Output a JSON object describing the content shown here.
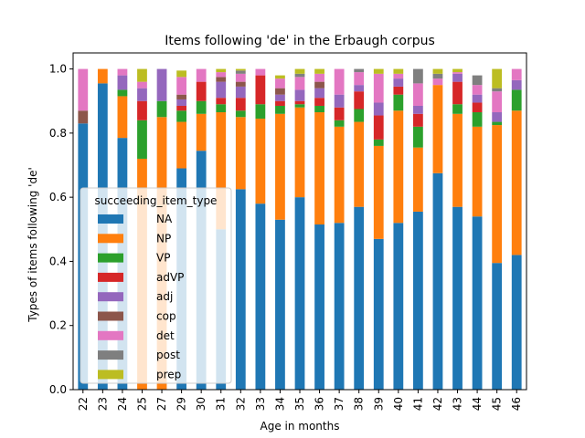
{
  "chart_data": {
    "type": "bar",
    "stacked": true,
    "title": "Items following 'de' in the Erbaugh corpus",
    "xlabel": "Age in months",
    "ylabel": "Types of items following 'de'",
    "ylim": [
      0,
      1.05
    ],
    "yticks": [
      "0.0",
      "0.2",
      "0.4",
      "0.6",
      "0.8",
      "1.0"
    ],
    "legend_title": "succeeding_item_type",
    "legend_placement": "center-left",
    "categories": [
      "22",
      "23",
      "24",
      "25",
      "27",
      "29",
      "30",
      "31",
      "32",
      "33",
      "34",
      "35",
      "36",
      "37",
      "38",
      "39",
      "40",
      "41",
      "42",
      "43",
      "44",
      "45",
      "46"
    ],
    "series": [
      {
        "name": "NA",
        "color": "#1f77b4",
        "values": [
          0.83,
          0.955,
          0.785,
          0.0,
          0.0,
          0.69,
          0.745,
          0.5,
          0.625,
          0.58,
          0.53,
          0.6,
          0.515,
          0.52,
          0.57,
          0.47,
          0.52,
          0.555,
          0.675,
          0.57,
          0.54,
          0.395,
          0.42
        ]
      },
      {
        "name": "NP",
        "color": "#ff7f0e",
        "values": [
          0.0,
          0.045,
          0.13,
          0.72,
          0.85,
          0.145,
          0.115,
          0.365,
          0.225,
          0.265,
          0.33,
          0.28,
          0.35,
          0.3,
          0.265,
          0.29,
          0.35,
          0.2,
          0.275,
          0.29,
          0.28,
          0.43,
          0.45
        ]
      },
      {
        "name": "VP",
        "color": "#2ca02c",
        "values": [
          0.0,
          0.0,
          0.02,
          0.12,
          0.05,
          0.035,
          0.04,
          0.025,
          0.02,
          0.045,
          0.025,
          0.01,
          0.02,
          0.02,
          0.04,
          0.02,
          0.05,
          0.065,
          0.0,
          0.03,
          0.045,
          0.01,
          0.065
        ]
      },
      {
        "name": "adVP",
        "color": "#d62728",
        "values": [
          0.0,
          0.0,
          0.0,
          0.06,
          0.0,
          0.015,
          0.06,
          0.02,
          0.04,
          0.09,
          0.015,
          0.01,
          0.025,
          0.04,
          0.055,
          0.075,
          0.025,
          0.04,
          0.0,
          0.07,
          0.03,
          0.0,
          0.0
        ]
      },
      {
        "name": "adj",
        "color": "#9467bd",
        "values": [
          0.0,
          0.0,
          0.045,
          0.04,
          0.1,
          0.02,
          0.0,
          0.05,
          0.035,
          0.0,
          0.02,
          0.035,
          0.03,
          0.04,
          0.02,
          0.04,
          0.025,
          0.025,
          0.0,
          0.025,
          0.025,
          0.03,
          0.03
        ]
      },
      {
        "name": "cop",
        "color": "#8c564b",
        "values": [
          0.04,
          0.0,
          0.0,
          0.0,
          0.0,
          0.015,
          0.0,
          0.015,
          0.015,
          0.0,
          0.02,
          0.0,
          0.02,
          0.0,
          0.0,
          0.0,
          0.0,
          0.0,
          0.0,
          0.0,
          0.0,
          0.0,
          0.0
        ]
      },
      {
        "name": "det",
        "color": "#e377c2",
        "values": [
          0.13,
          0.0,
          0.02,
          0.02,
          0.0,
          0.055,
          0.04,
          0.015,
          0.025,
          0.02,
          0.03,
          0.04,
          0.025,
          0.08,
          0.04,
          0.09,
          0.015,
          0.07,
          0.02,
          0.005,
          0.03,
          0.065,
          0.035
        ]
      },
      {
        "name": "post",
        "color": "#7f7f7f",
        "values": [
          0.0,
          0.0,
          0.0,
          0.0,
          0.0,
          0.0,
          0.0,
          0.0,
          0.01,
          0.0,
          0.0,
          0.01,
          0.0,
          0.0,
          0.01,
          0.0,
          0.0,
          0.045,
          0.015,
          0.0,
          0.03,
          0.01,
          0.0
        ]
      },
      {
        "name": "prep",
        "color": "#bcbd22",
        "values": [
          0.0,
          0.0,
          0.0,
          0.04,
          0.0,
          0.02,
          0.0,
          0.01,
          0.005,
          0.0,
          0.01,
          0.015,
          0.015,
          0.0,
          0.0,
          0.015,
          0.015,
          0.0,
          0.015,
          0.01,
          0.0,
          0.06,
          0.0
        ]
      }
    ]
  }
}
